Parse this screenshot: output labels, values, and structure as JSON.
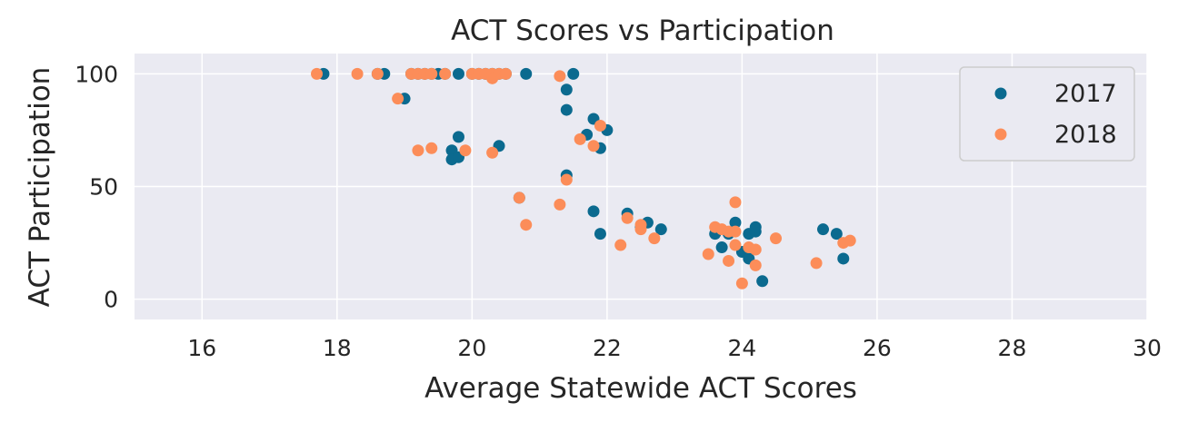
{
  "chart_data": {
    "type": "scatter",
    "title": "ACT Scores vs Participation",
    "xlabel": "Average Statewide ACT Scores",
    "ylabel": "ACT Participation",
    "xlim": [
      15,
      30
    ],
    "ylim": [
      -9,
      109
    ],
    "xticks": [
      16,
      18,
      20,
      22,
      24,
      26,
      28,
      30
    ],
    "yticks": [
      0,
      50,
      100
    ],
    "grid": true,
    "legend_position": "top-right",
    "background": "#eaeaf2",
    "series": [
      {
        "name": "2017",
        "color": "#0b6a8f",
        "points": [
          [
            17.8,
            100
          ],
          [
            18.6,
            100
          ],
          [
            18.7,
            100
          ],
          [
            19.0,
            89
          ],
          [
            19.1,
            100
          ],
          [
            19.2,
            100
          ],
          [
            19.3,
            100
          ],
          [
            19.4,
            100
          ],
          [
            19.5,
            100
          ],
          [
            19.6,
            100
          ],
          [
            19.7,
            66
          ],
          [
            19.7,
            62
          ],
          [
            19.8,
            63
          ],
          [
            19.8,
            72
          ],
          [
            19.8,
            100
          ],
          [
            20.0,
            100
          ],
          [
            20.1,
            100
          ],
          [
            20.2,
            100
          ],
          [
            20.3,
            100
          ],
          [
            20.4,
            68
          ],
          [
            20.4,
            100
          ],
          [
            20.5,
            100
          ],
          [
            20.7,
            45
          ],
          [
            20.8,
            100
          ],
          [
            21.4,
            93
          ],
          [
            21.4,
            84
          ],
          [
            21.4,
            55
          ],
          [
            21.5,
            100
          ],
          [
            21.7,
            73
          ],
          [
            21.8,
            80
          ],
          [
            21.8,
            39
          ],
          [
            21.9,
            67
          ],
          [
            21.9,
            29
          ],
          [
            22.0,
            75
          ],
          [
            22.3,
            38
          ],
          [
            22.5,
            32
          ],
          [
            22.6,
            34
          ],
          [
            22.8,
            31
          ],
          [
            23.6,
            29
          ],
          [
            23.7,
            23
          ],
          [
            23.8,
            29
          ],
          [
            23.9,
            34
          ],
          [
            24.0,
            21
          ],
          [
            24.1,
            18
          ],
          [
            24.1,
            29
          ],
          [
            24.2,
            30
          ],
          [
            24.2,
            32
          ],
          [
            24.3,
            8
          ],
          [
            25.2,
            31
          ],
          [
            25.4,
            29
          ],
          [
            25.5,
            18
          ]
        ]
      },
      {
        "name": "2018",
        "color": "#fc8d59",
        "points": [
          [
            17.7,
            100
          ],
          [
            18.3,
            100
          ],
          [
            18.6,
            100
          ],
          [
            18.9,
            89
          ],
          [
            19.1,
            100
          ],
          [
            19.2,
            66
          ],
          [
            19.2,
            100
          ],
          [
            19.3,
            100
          ],
          [
            19.4,
            67
          ],
          [
            19.4,
            100
          ],
          [
            19.6,
            100
          ],
          [
            19.9,
            66
          ],
          [
            20.0,
            100
          ],
          [
            20.1,
            100
          ],
          [
            20.2,
            100
          ],
          [
            20.3,
            100
          ],
          [
            20.3,
            98
          ],
          [
            20.3,
            65
          ],
          [
            20.4,
            100
          ],
          [
            20.5,
            100
          ],
          [
            20.7,
            45
          ],
          [
            20.8,
            33
          ],
          [
            21.3,
            99
          ],
          [
            21.3,
            42
          ],
          [
            21.4,
            53
          ],
          [
            21.6,
            71
          ],
          [
            21.8,
            68
          ],
          [
            21.9,
            77
          ],
          [
            22.2,
            24
          ],
          [
            22.3,
            36
          ],
          [
            22.5,
            31
          ],
          [
            22.5,
            33
          ],
          [
            22.7,
            27
          ],
          [
            23.5,
            20
          ],
          [
            23.6,
            32
          ],
          [
            23.7,
            31
          ],
          [
            23.8,
            17
          ],
          [
            23.8,
            30
          ],
          [
            23.9,
            43
          ],
          [
            23.9,
            24
          ],
          [
            23.9,
            30
          ],
          [
            24.0,
            7
          ],
          [
            24.1,
            23
          ],
          [
            24.2,
            22
          ],
          [
            24.2,
            15
          ],
          [
            24.5,
            27
          ],
          [
            25.1,
            16
          ],
          [
            25.5,
            25
          ],
          [
            25.6,
            26
          ]
        ]
      }
    ]
  }
}
